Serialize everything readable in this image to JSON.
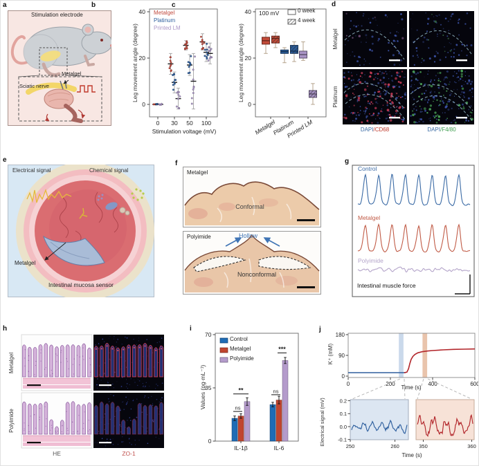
{
  "panels": {
    "a": {
      "letter": "a",
      "title": "Stimulation electrode",
      "labels": {
        "metalgel": "Metalgel",
        "sciatic_nerve": "Sciatic nerve"
      }
    },
    "b": {
      "letter": "b"
    },
    "c": {
      "letter": "c"
    },
    "d": {
      "letter": "d",
      "row_labels": [
        "Metalgel",
        "Platinum"
      ],
      "captions": {
        "dapi": "DAPI",
        "cd68": "/CD68",
        "f480": "/F4/80"
      },
      "caption_colors": {
        "dapi": "#3b6ba5",
        "cd68": "#c0392b",
        "f480": "#3f9e4f"
      },
      "micrographs": [
        {
          "row": "Metalgel",
          "col": "DAPI/CD68",
          "blue_dots": 70,
          "accent_dots": 6,
          "accent_color": "#6a4a70"
        },
        {
          "row": "Metalgel",
          "col": "DAPI/F4/80",
          "blue_dots": 75,
          "accent_dots": 8,
          "accent_color": "#3f7a50"
        },
        {
          "row": "Platinum",
          "col": "DAPI/CD68",
          "blue_dots": 155,
          "accent_dots": 85,
          "accent_color": "#c23a55"
        },
        {
          "row": "Platinum",
          "col": "DAPI/F4/80",
          "blue_dots": 155,
          "accent_dots": 60,
          "accent_color": "#49a055"
        }
      ]
    },
    "e": {
      "letter": "e",
      "labels": {
        "electrical": "Electrical signal",
        "chemical": "Chemical signal",
        "metalgel": "Metalgel",
        "caption": "Intestinal mucosa sensor"
      }
    },
    "f": {
      "letter": "f",
      "top": {
        "name": "Metalgel",
        "state": "Conformal"
      },
      "bottom": {
        "name": "Polyimide",
        "state": "Nonconformal",
        "hollow": "Hollow"
      }
    },
    "g": {
      "letter": "g"
    },
    "h": {
      "letter": "h",
      "row_labels": [
        "Metalgel",
        "Polyimide"
      ],
      "captions": [
        "HE",
        "ZO-1"
      ],
      "caption_colors": [
        "#555555",
        "#c0504d"
      ],
      "rows": [
        {
          "name": "Metalgel",
          "damaged": false
        },
        {
          "name": "Polyimide",
          "damaged": true
        }
      ]
    },
    "i": {
      "letter": "i"
    },
    "j": {
      "letter": "j"
    }
  },
  "chart_data": [
    {
      "panel": "b",
      "type": "scatter",
      "xlabel": "Stimulation voltage (mV)",
      "ylabel": "Leg movement angle (degree)",
      "x_ticks": [
        0,
        30,
        50,
        100
      ],
      "y_ticks": [
        0,
        20,
        40
      ],
      "ylim": [
        -4,
        40
      ],
      "series": [
        {
          "name": "Metalgel",
          "color": "#c14a3d",
          "means": [
            0,
            17.5,
            25.5,
            27
          ],
          "spreads": [
            0.3,
            4.5,
            2,
            3.5
          ]
        },
        {
          "name": "Platinum",
          "color": "#2e5f9e",
          "means": [
            0,
            9.5,
            17,
            22.5
          ],
          "spreads": [
            0.3,
            4.5,
            4.5,
            4
          ]
        },
        {
          "name": "Printed LM",
          "color": "#ab96c6",
          "means": [
            0,
            2.5,
            10,
            22
          ],
          "spreads": [
            0.3,
            4.5,
            12,
            4.5
          ]
        }
      ]
    },
    {
      "panel": "c",
      "type": "box",
      "annotation": "100 mV",
      "ylabel": "Leg movement angle (degree)",
      "y_ticks": [
        0,
        20,
        40
      ],
      "legend": [
        "0 week",
        "4 week"
      ],
      "categories": [
        "Metalgel",
        "Platinum",
        "Printed LM"
      ],
      "colors": [
        "#c44b38",
        "#2b5d9b",
        "#a893c5"
      ],
      "series": [
        {
          "name": "0 week",
          "boxes": [
            {
              "lo": 22,
              "q1": 26,
              "med": 27.5,
              "q3": 29,
              "hi": 31
            },
            {
              "lo": 18,
              "q1": 22,
              "med": 22.8,
              "q3": 23.5,
              "hi": 24.5
            },
            {
              "lo": 19,
              "q1": 20,
              "med": 21.5,
              "q3": 23,
              "hi": 27
            }
          ]
        },
        {
          "name": "4 week",
          "boxes": [
            {
              "lo": 24.5,
              "q1": 26.5,
              "med": 28.5,
              "q3": 29.5,
              "hi": 31
            },
            {
              "lo": 18.5,
              "q1": 22,
              "med": 23,
              "q3": 25.5,
              "hi": 27
            },
            {
              "lo": 0,
              "q1": 3,
              "med": 4.5,
              "q3": 6,
              "hi": 9
            }
          ]
        }
      ]
    },
    {
      "panel": "g",
      "type": "line",
      "caption": "Intestinal muscle force",
      "traces": [
        {
          "name": "Control",
          "color": "#3a6aa5",
          "peaks": 8,
          "relative_amplitude": "high"
        },
        {
          "name": "Metalgel",
          "color": "#c05a45",
          "peaks": 8,
          "relative_amplitude": "high"
        },
        {
          "name": "Polyimide",
          "color": "#b3a3c9",
          "peaks": 0,
          "relative_amplitude": "flat-noise"
        }
      ]
    },
    {
      "panel": "i",
      "type": "bar",
      "ylabel": "Values (pg·mL⁻¹)",
      "y_ticks": [
        0,
        35,
        70
      ],
      "categories": [
        "IL-1β",
        "IL-6"
      ],
      "series": [
        {
          "name": "Control",
          "color": "#1f6cb5",
          "values": [
            15,
            24
          ],
          "errors": [
            1.5,
            1.5
          ]
        },
        {
          "name": "Metalgel",
          "color": "#c0452f",
          "values": [
            16.5,
            27
          ],
          "errors": [
            1.5,
            2.5
          ]
        },
        {
          "name": "Polyimide",
          "color": "#b49bcb",
          "values": [
            26,
            53
          ],
          "errors": [
            2.5,
            2
          ]
        }
      ],
      "significance": [
        {
          "group": 0,
          "bars": [
            0,
            1
          ],
          "label": "ns",
          "y": 19.5
        },
        {
          "group": 0,
          "bars": [
            0,
            2
          ],
          "label": "**",
          "y": 31
        },
        {
          "group": 1,
          "bars": [
            0,
            1
          ],
          "label": "ns",
          "y": 30.5
        },
        {
          "group": 1,
          "bars": [
            1,
            2
          ],
          "label": "***",
          "y": 58
        }
      ]
    },
    {
      "panel": "j",
      "type": "line",
      "ylabel": "K⁺ (mM)",
      "xlabel": "Time (s)",
      "x_ticks": [
        0,
        200,
        400,
        600
      ],
      "y_ticks": [
        0,
        90,
        180
      ],
      "xlim": [
        0,
        600
      ],
      "ylim": [
        0,
        180
      ],
      "series": [
        {
          "name": "baseline",
          "color": "#2e5f9e",
          "points": [
            [
              0,
              15
            ],
            [
              272,
              15
            ]
          ]
        },
        {
          "name": "K+ rise",
          "color": "#b2252a",
          "points": [
            [
              265,
              15
            ],
            [
              278,
              17
            ],
            [
              286,
              32
            ],
            [
              292,
              55
            ],
            [
              298,
              72
            ],
            [
              306,
              85
            ],
            [
              316,
              94
            ],
            [
              330,
              101
            ],
            [
              350,
              106
            ],
            [
              375,
              109
            ],
            [
              400,
              111
            ],
            [
              450,
              114
            ],
            [
              500,
              116
            ],
            [
              550,
              117
            ],
            [
              600,
              118
            ]
          ]
        }
      ],
      "highlight_bands": [
        {
          "t0": 240,
          "t1": 262,
          "color": "#b8cce4"
        },
        {
          "t0": 352,
          "t1": 374,
          "color": "#e2b090"
        }
      ],
      "insets": {
        "ylabel": "Electrical signal (mV)",
        "xlabel": "Time (s)",
        "y_ticks": [
          -0.1,
          0.0,
          0.1,
          0.2
        ],
        "left": {
          "x_ticks": [
            250,
            260
          ],
          "xlim": [
            250,
            263
          ],
          "bg": "#dce6f2",
          "color": "#2e5f9e",
          "amplitude_mV": 0.05
        },
        "right": {
          "x_ticks": [
            350,
            360
          ],
          "xlim": [
            348.5,
            360.5
          ],
          "bg": "#f7e2d7",
          "color": "#b2252a",
          "amplitude_mV": 0.1
        }
      }
    }
  ]
}
